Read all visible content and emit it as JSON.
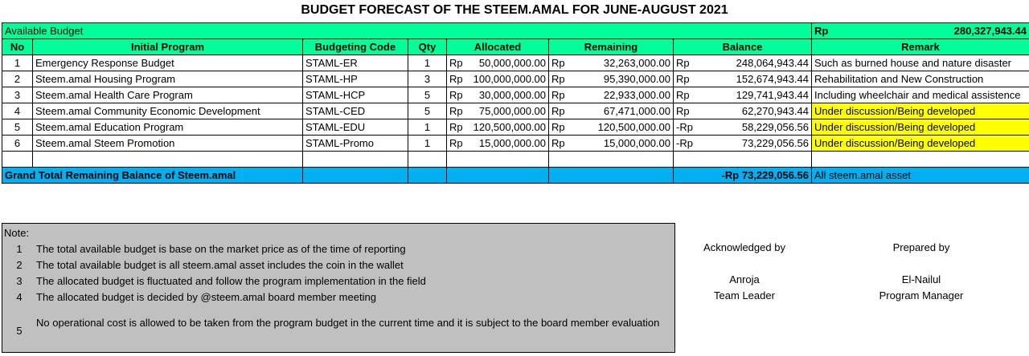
{
  "title": "BUDGET FORECAST OF THE STEEM.AMAL FOR JUNE-AUGUST 2021",
  "available": {
    "label": "Available Budget",
    "currency": "Rp",
    "amount": "280,327,943.44"
  },
  "headers": [
    "No",
    "Initial Program",
    "Budgeting Code",
    "Qty",
    "Allocated",
    "Remaining",
    "Balance",
    "Remark"
  ],
  "rows": [
    {
      "no": "1",
      "program": "Emergency Response Budget",
      "code": "STAML-ER",
      "qty": "1",
      "alloc_cur": "Rp",
      "alloc": "50,000,000.00",
      "rem_cur": "Rp",
      "rem": "32,263,000.00",
      "bal_cur": "Rp",
      "bal": "248,064,943.44",
      "remark": "Such as burned house and nature disaster"
    },
    {
      "no": "2",
      "program": "Steem.amal Housing Program",
      "code": "STAML-HP",
      "qty": "3",
      "alloc_cur": "Rp",
      "alloc": "100,000,000.00",
      "rem_cur": "Rp",
      "rem": "95,390,000.00",
      "bal_cur": "Rp",
      "bal": "152,674,943.44",
      "remark": "Rehabilitation and New Construction"
    },
    {
      "no": "3",
      "program": "Steem.amal Health Care Program",
      "code": "STAML-HCP",
      "qty": "5",
      "alloc_cur": "Rp",
      "alloc": "30,000,000.00",
      "rem_cur": "Rp",
      "rem": "22,933,000.00",
      "bal_cur": "Rp",
      "bal": "129,741,943.44",
      "remark": "Including wheelchair and medical assistence"
    },
    {
      "no": "4",
      "program": "Steem.amal Community Economic Development",
      "code": "STAML-CED",
      "qty": "5",
      "alloc_cur": "Rp",
      "alloc": "75,000,000.00",
      "rem_cur": "Rp",
      "rem": "67,471,000.00",
      "bal_cur": "Rp",
      "bal": "62,270,943.44",
      "remark": "Under discussion/Being developed"
    },
    {
      "no": "5",
      "program": "Steem.amal Education Program",
      "code": "STAML-EDU",
      "qty": "1",
      "alloc_cur": "Rp",
      "alloc": "120,500,000.00",
      "rem_cur": "Rp",
      "rem": "120,500,000.00",
      "bal_cur": "-Rp",
      "bal": "58,229,056.56",
      "remark": "Under discussion/Being developed"
    },
    {
      "no": "6",
      "program": "Steem.amal Steem Promotion",
      "code": "STAML-Promo",
      "qty": "1",
      "alloc_cur": "Rp",
      "alloc": "15,000,000.00",
      "rem_cur": "Rp",
      "rem": "15,000,000.00",
      "bal_cur": "-Rp",
      "bal": "73,229,056.56",
      "remark": "Under discussion/Being developed"
    }
  ],
  "grand": {
    "label": "Grand Total Remaining Balance of Steem.amal",
    "value": "-Rp 73,229,056.56",
    "remark": "All steem.amal asset"
  },
  "colors": {
    "green": "#00FF99",
    "blue": "#00B0F0",
    "yellow": "#FFFF00",
    "note_bg": "#C0C0C0"
  },
  "notes": {
    "label": "Note:",
    "items": [
      {
        "num": "1",
        "text": "The total available budget is base on the market price as of the time of reporting"
      },
      {
        "num": "2",
        "text": "The total available budget is all steem.amal asset includes the coin in the wallet"
      },
      {
        "num": "3",
        "text": "The allocated budget is fluctuated and follow the program implementation in the field"
      },
      {
        "num": "4",
        "text": "The allocated budget is decided by @steem.amal board member meeting"
      },
      {
        "num": "5",
        "text": "No operational cost is allowed to be taken from the program budget in the current time and it is subject to the board member evaluation"
      }
    ]
  },
  "signatures": {
    "acknowledged": {
      "label": "Acknowledged by",
      "name": "Anroja",
      "role": "Team Leader"
    },
    "prepared": {
      "label": "Prepared by",
      "name": "El-Nailul",
      "role": "Program Manager"
    }
  }
}
